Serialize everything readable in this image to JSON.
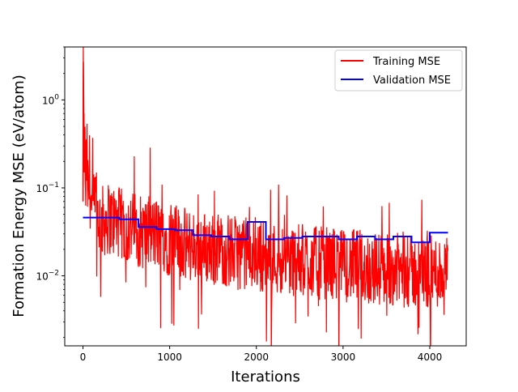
{
  "chart_data": {
    "type": "line",
    "title": "",
    "xlabel": "Iterations",
    "ylabel": "Formation Energy MSE (eV/atom)",
    "xlim": [
      -210,
      4420
    ],
    "ylim": [
      0.0016,
      4.0
    ],
    "yscale": "log",
    "grid": false,
    "legend_position": "top-right",
    "x_ticks": [
      {
        "value": 0,
        "label": "0"
      },
      {
        "value": 1000,
        "label": "1000"
      },
      {
        "value": 2000,
        "label": "2000"
      },
      {
        "value": 3000,
        "label": "3000"
      },
      {
        "value": 4000,
        "label": "4000"
      }
    ],
    "y_ticks": [
      {
        "value": 0.01,
        "label": "10",
        "exp": "−2"
      },
      {
        "value": 0.1,
        "label": "10",
        "exp": "−1"
      },
      {
        "value": 1,
        "label": "10",
        "exp": "0"
      }
    ],
    "series": [
      {
        "name": "Training MSE",
        "color": "#ff0000",
        "x": [
          0,
          5,
          10,
          15,
          20,
          30,
          45,
          60,
          80,
          100,
          150,
          200,
          300,
          400,
          500,
          600,
          700,
          800,
          900,
          1000,
          1100,
          1200,
          1300,
          1400,
          1500,
          1600,
          1700,
          1800,
          1900,
          2000,
          2100,
          2200,
          2300,
          2400,
          2500,
          2600,
          2700,
          2800,
          2900,
          3000,
          3100,
          3200,
          3300,
          3400,
          3500,
          3600,
          3700,
          3800,
          3900,
          4000,
          4100,
          4200
        ],
        "y": [
          0.07,
          2.7,
          0.5,
          0.15,
          0.3,
          0.1,
          0.2,
          0.07,
          0.15,
          0.05,
          0.06,
          0.04,
          0.045,
          0.04,
          0.035,
          0.035,
          0.03,
          0.03,
          0.03,
          0.025,
          0.025,
          0.022,
          0.022,
          0.021,
          0.02,
          0.02,
          0.019,
          0.018,
          0.018,
          0.017,
          0.017,
          0.016,
          0.016,
          0.015,
          0.015,
          0.015,
          0.014,
          0.014,
          0.014,
          0.013,
          0.013,
          0.013,
          0.012,
          0.012,
          0.012,
          0.012,
          0.011,
          0.011,
          0.011,
          0.011,
          0.011,
          0.011
        ]
      },
      {
        "name": "Validation MSE",
        "color": "#0000ff",
        "x": [
          0,
          420,
          420,
          640,
          640,
          850,
          850,
          1060,
          1060,
          1270,
          1270,
          1480,
          1480,
          1690,
          1690,
          1900,
          1900,
          2110,
          2110,
          2320,
          2320,
          2530,
          2530,
          2740,
          2740,
          2950,
          2950,
          3160,
          3160,
          3370,
          3370,
          3580,
          3580,
          3790,
          3790,
          4000,
          4000,
          4210
        ],
        "y": [
          0.046,
          0.046,
          0.044,
          0.044,
          0.036,
          0.036,
          0.034,
          0.034,
          0.033,
          0.033,
          0.029,
          0.029,
          0.028,
          0.028,
          0.026,
          0.026,
          0.041,
          0.041,
          0.026,
          0.026,
          0.027,
          0.027,
          0.028,
          0.028,
          0.028,
          0.028,
          0.026,
          0.026,
          0.028,
          0.028,
          0.026,
          0.026,
          0.028,
          0.028,
          0.024,
          0.024,
          0.031,
          0.031
        ]
      }
    ]
  }
}
